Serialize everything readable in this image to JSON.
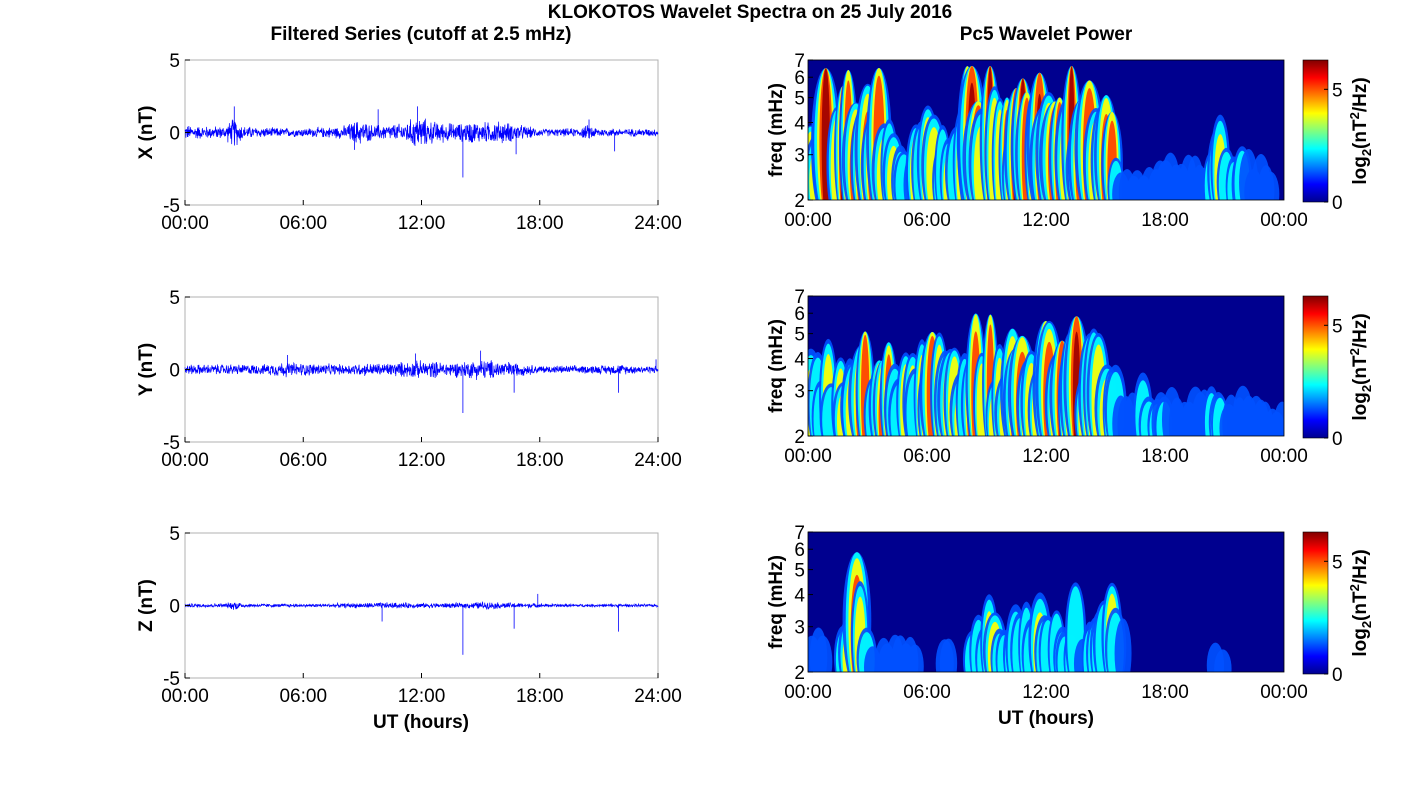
{
  "figure": {
    "title": "KLOKOTOS Wavelet Spectra on 25 July 2016",
    "left_title": "Filtered Series (cutoff at 2.5 mHz)",
    "right_title": "Pc5 Wavelet Power",
    "xlabel": "UT (hours)"
  },
  "colors": {
    "trace": "#0000ff",
    "jet": [
      "#00008f",
      "#0000ff",
      "#00ffff",
      "#ffff00",
      "#ff0000",
      "#800000"
    ]
  },
  "chart_data": [
    {
      "type": "line",
      "panel": "X",
      "ylabel": "X (nT)",
      "xlabel": "",
      "x_range": [
        0,
        24
      ],
      "x_ticks": [
        "00:00",
        "06:00",
        "12:00",
        "18:00",
        "24:00"
      ],
      "ylim": [
        -5,
        5
      ],
      "y_ticks": [
        "5",
        "0",
        "-5"
      ],
      "grid": false,
      "series": [
        {
          "amplitude_envelope_x": [
            0,
            1,
            2,
            2.5,
            3,
            4,
            5,
            6,
            7,
            8,
            8.8,
            9.5,
            10,
            11,
            11.8,
            12.5,
            13,
            14,
            14.5,
            15,
            16,
            17,
            18,
            19,
            20,
            20.5,
            21,
            22,
            23,
            24
          ],
          "amplitude_envelope_y": [
            0.6,
            0.5,
            0.5,
            1.2,
            0.5,
            0.4,
            0.35,
            0.35,
            0.4,
            0.5,
            1.0,
            0.6,
            0.6,
            0.7,
            1.3,
            0.9,
            0.8,
            0.7,
            0.9,
            0.8,
            0.9,
            0.6,
            0.3,
            0.3,
            0.35,
            0.6,
            0.35,
            0.3,
            0.3,
            0.3
          ],
          "spikes": [
            {
              "x": 2.5,
              "y": 1.8
            },
            {
              "x": 9.8,
              "y": 1.6
            },
            {
              "x": 11.8,
              "y": 1.8
            },
            {
              "x": 14.1,
              "y": -3.1
            },
            {
              "x": 16.8,
              "y": -1.5
            },
            {
              "x": 20.5,
              "y": 0.9
            },
            {
              "x": 21.8,
              "y": -1.3
            },
            {
              "x": 8.6,
              "y": -1.2
            }
          ]
        }
      ]
    },
    {
      "type": "line",
      "panel": "Y",
      "ylabel": "Y (nT)",
      "xlabel": "",
      "x_range": [
        0,
        24
      ],
      "x_ticks": [
        "00:00",
        "06:00",
        "12:00",
        "18:00",
        "24:00"
      ],
      "ylim": [
        -5,
        5
      ],
      "y_ticks": [
        "5",
        "0",
        "-5"
      ],
      "grid": false,
      "series": [
        {
          "amplitude_envelope_x": [
            0,
            2,
            4,
            5,
            6,
            8,
            9,
            10,
            11,
            12,
            13,
            14,
            15,
            16,
            17,
            18,
            20,
            22,
            23,
            24
          ],
          "amplitude_envelope_y": [
            0.4,
            0.4,
            0.4,
            0.6,
            0.5,
            0.4,
            0.5,
            0.5,
            0.6,
            0.7,
            0.6,
            0.6,
            0.8,
            0.7,
            0.5,
            0.3,
            0.3,
            0.4,
            0.3,
            0.3
          ],
          "spikes": [
            {
              "x": 5.2,
              "y": 1.0
            },
            {
              "x": 11.7,
              "y": 1.1
            },
            {
              "x": 14.1,
              "y": -3.0
            },
            {
              "x": 15.0,
              "y": 1.3
            },
            {
              "x": 16.7,
              "y": -1.6
            },
            {
              "x": 22.0,
              "y": -1.6
            },
            {
              "x": 23.9,
              "y": 0.7
            }
          ]
        }
      ]
    },
    {
      "type": "line",
      "panel": "Z",
      "ylabel": "Z (nT)",
      "xlabel": "UT (hours)",
      "x_range": [
        0,
        24
      ],
      "x_ticks": [
        "00:00",
        "06:00",
        "12:00",
        "18:00",
        "24:00"
      ],
      "ylim": [
        -5,
        5
      ],
      "y_ticks": [
        "5",
        "0",
        "-5"
      ],
      "grid": false,
      "series": [
        {
          "amplitude_envelope_x": [
            0,
            2,
            2.6,
            3,
            6,
            9,
            10,
            12,
            14,
            15,
            16,
            18,
            20,
            24
          ],
          "amplitude_envelope_y": [
            0.15,
            0.15,
            0.4,
            0.15,
            0.12,
            0.2,
            0.25,
            0.2,
            0.2,
            0.3,
            0.25,
            0.15,
            0.12,
            0.12
          ],
          "spikes": [
            {
              "x": 10.0,
              "y": -1.1
            },
            {
              "x": 14.1,
              "y": -3.4
            },
            {
              "x": 16.7,
              "y": -1.6
            },
            {
              "x": 17.9,
              "y": 0.8
            },
            {
              "x": 22.0,
              "y": -1.8
            }
          ]
        }
      ]
    },
    {
      "type": "heatmap",
      "panel": "X",
      "ylabel": "freq (mHz)",
      "xlabel": "",
      "x_range": [
        0,
        24
      ],
      "x_ticks": [
        "00:00",
        "06:00",
        "12:00",
        "18:00",
        "00:00"
      ],
      "y_scale": "log",
      "ylim": [
        2,
        7
      ],
      "y_ticks": [
        "2",
        "3",
        "4",
        "5",
        "6",
        "7"
      ],
      "colorbar": {
        "label": "log2(nT2/Hz)",
        "ticks": [
          "0",
          "5"
        ],
        "range": [
          0,
          6.3
        ]
      },
      "activity_hours": [
        0,
        1,
        2,
        2.8,
        3.5,
        4,
        5,
        6,
        7,
        8,
        8.8,
        9.5,
        10.5,
        11.5,
        12.5,
        13.5,
        14.5,
        15.3,
        15.8,
        17,
        18,
        19,
        20,
        20.5,
        21,
        22,
        23,
        24
      ],
      "activity_level": [
        1.0,
        0.9,
        0.95,
        1.0,
        0.8,
        0.8,
        0.3,
        0.6,
        0.6,
        0.8,
        1.0,
        0.9,
        0.9,
        0.9,
        0.9,
        0.9,
        0.85,
        0.85,
        0.15,
        0.15,
        0.2,
        0.2,
        0.25,
        0.6,
        0.4,
        0.35,
        0.2,
        0.1
      ]
    },
    {
      "type": "heatmap",
      "panel": "Y",
      "ylabel": "freq (mHz)",
      "xlabel": "",
      "x_range": [
        0,
        24
      ],
      "x_ticks": [
        "00:00",
        "06:00",
        "12:00",
        "18:00",
        "00:00"
      ],
      "y_scale": "log",
      "ylim": [
        2,
        7
      ],
      "y_ticks": [
        "2",
        "3",
        "4",
        "5",
        "6",
        "7"
      ],
      "colorbar": {
        "label": "log2(nT2/Hz)",
        "ticks": [
          "0",
          "5"
        ],
        "range": [
          0,
          6.3
        ]
      },
      "activity_hours": [
        0,
        1,
        2,
        3,
        4,
        5,
        6,
        7,
        8,
        9,
        10,
        11,
        12,
        13,
        14,
        15.2,
        15.7,
        17,
        18,
        19,
        20,
        21,
        22,
        23,
        24
      ],
      "activity_level": [
        0.55,
        0.55,
        0.6,
        0.75,
        0.8,
        0.4,
        0.8,
        0.6,
        0.65,
        0.75,
        0.75,
        0.85,
        0.9,
        0.85,
        0.75,
        0.75,
        0.15,
        0.3,
        0.25,
        0.2,
        0.25,
        0.35,
        0.3,
        0.2,
        0.1
      ]
    },
    {
      "type": "heatmap",
      "panel": "Z",
      "ylabel": "freq (mHz)",
      "xlabel": "UT (hours)",
      "x_range": [
        0,
        24
      ],
      "x_ticks": [
        "00:00",
        "06:00",
        "12:00",
        "18:00",
        "00:00"
      ],
      "y_scale": "log",
      "ylim": [
        2,
        7
      ],
      "y_ticks": [
        "2",
        "3",
        "4",
        "5",
        "6",
        "7"
      ],
      "colorbar": {
        "label": "log2(nT2/Hz)",
        "ticks": [
          "0",
          "5"
        ],
        "range": [
          0,
          6.3
        ]
      },
      "activity_hours": [
        0,
        0.6,
        1.5,
        2.5,
        3.2,
        4,
        5,
        6,
        7,
        8,
        8.5,
        9.5,
        10.5,
        11.5,
        12.5,
        13.5,
        14.5,
        15.4,
        16,
        18,
        20,
        21,
        22,
        24
      ],
      "activity_level": [
        0.35,
        0.2,
        0.05,
        0.8,
        0.1,
        0.15,
        0.15,
        0.05,
        0.15,
        0.1,
        0.45,
        0.45,
        0.4,
        0.45,
        0.45,
        0.4,
        0.4,
        0.55,
        0.05,
        0.05,
        0.05,
        0.15,
        0.05,
        0.0
      ]
    }
  ]
}
